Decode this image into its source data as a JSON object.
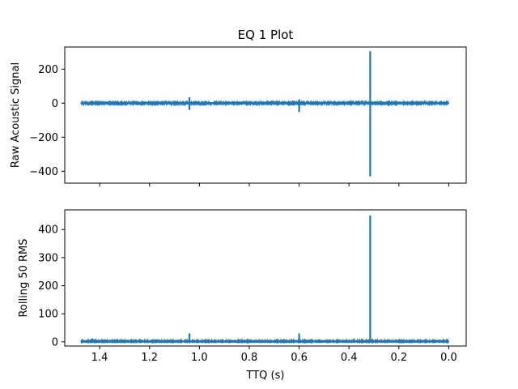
{
  "chart_data": [
    {
      "type": "line",
      "title": "EQ 1 Plot",
      "xlabel": "",
      "ylabel": "Raw Acoustic Signal",
      "xlim": [
        1.54,
        -0.07
      ],
      "ylim": [
        -470,
        330
      ],
      "x_inverted": true,
      "x_ticks": [
        1.4,
        1.2,
        1.0,
        0.8,
        0.6,
        0.4,
        0.2,
        0.0
      ],
      "x_tick_labels_visible": false,
      "y_ticks": [
        200,
        0,
        -200,
        -400
      ],
      "y_tick_labels": [
        "200",
        "0",
        "−200",
        "−400"
      ],
      "line_color": "#1f77b4",
      "grid": false,
      "baseline": 0,
      "noise_amplitude": 4,
      "spikes": [
        {
          "x": 1.43,
          "min": -12,
          "max": 12
        },
        {
          "x": 1.33,
          "min": -10,
          "max": 10
        },
        {
          "x": 1.17,
          "min": -10,
          "max": 10
        },
        {
          "x": 1.04,
          "min": -40,
          "max": 35
        },
        {
          "x": 0.98,
          "min": -10,
          "max": 10
        },
        {
          "x": 0.8,
          "min": -8,
          "max": 8
        },
        {
          "x": 0.62,
          "min": -14,
          "max": 14
        },
        {
          "x": 0.6,
          "min": -52,
          "max": 22
        },
        {
          "x": 0.42,
          "min": -8,
          "max": 8
        },
        {
          "x": 0.315,
          "min": -430,
          "max": 305
        },
        {
          "x": 0.24,
          "min": -16,
          "max": 16
        }
      ]
    },
    {
      "type": "line",
      "title": "",
      "xlabel": "TTQ (s)",
      "ylabel": "Rolling 50 RMS",
      "xlim": [
        1.54,
        -0.07
      ],
      "ylim": [
        -15,
        470
      ],
      "x_inverted": true,
      "x_ticks": [
        1.4,
        1.2,
        1.0,
        0.8,
        0.6,
        0.4,
        0.2,
        0.0
      ],
      "x_tick_labels": [
        "1.4",
        "1.2",
        "1.0",
        "0.8",
        "0.6",
        "0.4",
        "0.2",
        "0.0"
      ],
      "y_ticks": [
        400,
        300,
        200,
        100,
        0
      ],
      "y_tick_labels": [
        "400",
        "300",
        "200",
        "100",
        "0"
      ],
      "line_color": "#1f77b4",
      "grid": false,
      "baseline": 1,
      "noise_amplitude": 3,
      "spikes": [
        {
          "x": 1.43,
          "min": 0,
          "max": 12
        },
        {
          "x": 1.33,
          "min": 0,
          "max": 10
        },
        {
          "x": 1.17,
          "min": 0,
          "max": 9
        },
        {
          "x": 1.04,
          "min": 0,
          "max": 30
        },
        {
          "x": 0.98,
          "min": 0,
          "max": 8
        },
        {
          "x": 0.73,
          "min": 0,
          "max": 7
        },
        {
          "x": 0.6,
          "min": 0,
          "max": 30
        },
        {
          "x": 0.38,
          "min": 0,
          "max": 12
        },
        {
          "x": 0.315,
          "min": 0,
          "max": 450
        },
        {
          "x": 0.24,
          "min": 0,
          "max": 8
        }
      ]
    }
  ]
}
